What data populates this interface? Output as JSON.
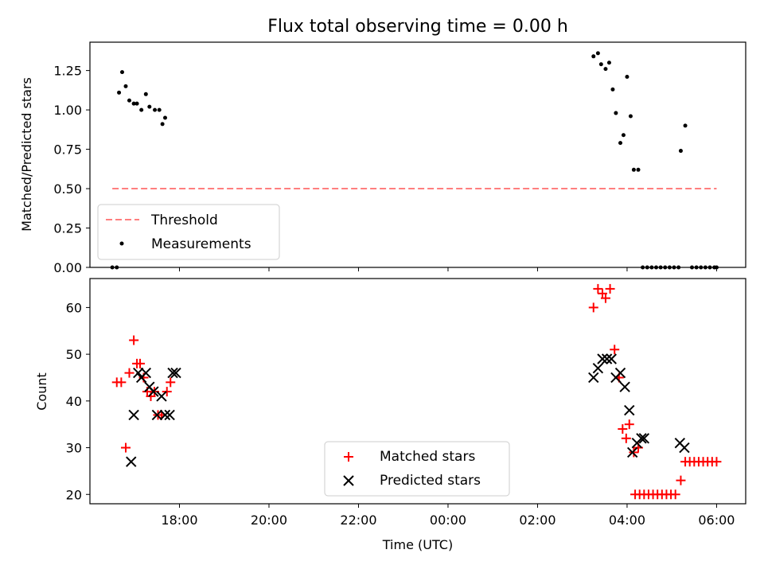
{
  "title": "Flux total observing time = 0.00 h",
  "colors": {
    "threshold": "#ff7f7f",
    "measurements": "#000000",
    "matched": "#ff0000",
    "predicted": "#000000"
  },
  "chart_data": [
    {
      "type": "scatter",
      "name": "ratio-panel",
      "ylabel": "Matched/Predicted stars",
      "xlim_hours": [
        16.0,
        30.65
      ],
      "ylim": [
        0,
        1.43
      ],
      "yticks": [
        0.0,
        0.25,
        0.5,
        0.75,
        1.0,
        1.25
      ],
      "ytick_labels": [
        "0.00",
        "0.25",
        "0.50",
        "0.75",
        "1.00",
        "1.25"
      ],
      "legend": {
        "position": "lower-left",
        "items": [
          {
            "key": "threshold",
            "label": "Threshold",
            "style": "dashed-line"
          },
          {
            "key": "measurements",
            "label": "Measurements",
            "style": "dot"
          }
        ]
      },
      "threshold": {
        "value": 0.5,
        "x_range_hours": [
          16.5,
          30.0
        ]
      },
      "measurements": [
        [
          16.5,
          0.0
        ],
        [
          16.6,
          0.0
        ],
        [
          16.65,
          1.11
        ],
        [
          16.72,
          1.24
        ],
        [
          16.8,
          1.15
        ],
        [
          16.88,
          1.06
        ],
        [
          16.98,
          1.04
        ],
        [
          17.05,
          1.04
        ],
        [
          17.15,
          1.0
        ],
        [
          17.25,
          1.1
        ],
        [
          17.33,
          1.02
        ],
        [
          17.45,
          1.0
        ],
        [
          17.55,
          1.0
        ],
        [
          17.62,
          0.91
        ],
        [
          17.68,
          0.95
        ],
        [
          27.25,
          1.34
        ],
        [
          27.35,
          1.36
        ],
        [
          27.42,
          1.29
        ],
        [
          27.52,
          1.26
        ],
        [
          27.6,
          1.3
        ],
        [
          27.68,
          1.13
        ],
        [
          27.75,
          0.98
        ],
        [
          27.85,
          0.79
        ],
        [
          27.92,
          0.84
        ],
        [
          28.0,
          1.21
        ],
        [
          28.08,
          0.96
        ],
        [
          28.15,
          0.62
        ],
        [
          28.25,
          0.62
        ],
        [
          29.2,
          0.74
        ],
        [
          29.3,
          0.9
        ],
        [
          28.35,
          0.0
        ],
        [
          28.45,
          0.0
        ],
        [
          28.55,
          0.0
        ],
        [
          28.65,
          0.0
        ],
        [
          28.75,
          0.0
        ],
        [
          28.85,
          0.0
        ],
        [
          28.95,
          0.0
        ],
        [
          29.05,
          0.0
        ],
        [
          29.15,
          0.0
        ],
        [
          29.45,
          0.0
        ],
        [
          29.55,
          0.0
        ],
        [
          29.65,
          0.0
        ],
        [
          29.75,
          0.0
        ],
        [
          29.85,
          0.0
        ],
        [
          29.95,
          0.0
        ],
        [
          30.0,
          0.0
        ]
      ]
    },
    {
      "type": "scatter",
      "name": "count-panel",
      "ylabel": "Count",
      "xlabel": "Time (UTC)",
      "xlim_hours": [
        16.0,
        30.65
      ],
      "ylim": [
        18,
        66.2
      ],
      "yticks": [
        20,
        30,
        40,
        50,
        60
      ],
      "ytick_labels": [
        "20",
        "30",
        "40",
        "50",
        "60"
      ],
      "xticks_hours": [
        18,
        20,
        22,
        24,
        26,
        28,
        30
      ],
      "xtick_labels": [
        "18:00",
        "20:00",
        "22:00",
        "00:00",
        "02:00",
        "04:00",
        "06:00"
      ],
      "legend": {
        "position": "lower-center",
        "items": [
          {
            "key": "matched",
            "label": "Matched stars",
            "style": "plus"
          },
          {
            "key": "predicted",
            "label": "Predicted stars",
            "style": "x"
          }
        ]
      },
      "series": [
        {
          "name": "Matched stars",
          "marker": "plus",
          "points": [
            [
              16.6,
              44
            ],
            [
              16.7,
              44
            ],
            [
              16.8,
              30
            ],
            [
              16.88,
              46
            ],
            [
              16.98,
              53
            ],
            [
              17.05,
              48
            ],
            [
              17.12,
              48
            ],
            [
              17.2,
              45
            ],
            [
              17.28,
              42
            ],
            [
              17.36,
              41
            ],
            [
              17.44,
              42
            ],
            [
              17.52,
              37
            ],
            [
              17.6,
              37
            ],
            [
              17.72,
              42
            ],
            [
              17.8,
              44
            ],
            [
              27.25,
              60
            ],
            [
              27.35,
              64
            ],
            [
              27.45,
              63
            ],
            [
              27.52,
              62
            ],
            [
              27.62,
              64
            ],
            [
              27.72,
              51
            ],
            [
              27.82,
              45
            ],
            [
              27.9,
              34
            ],
            [
              27.98,
              32
            ],
            [
              28.05,
              35
            ],
            [
              28.15,
              29
            ],
            [
              28.25,
              30
            ],
            [
              28.18,
              20
            ],
            [
              28.28,
              20
            ],
            [
              28.38,
              20
            ],
            [
              28.48,
              20
            ],
            [
              28.58,
              20
            ],
            [
              28.68,
              20
            ],
            [
              28.78,
              20
            ],
            [
              28.88,
              20
            ],
            [
              28.98,
              20
            ],
            [
              29.08,
              20
            ],
            [
              29.2,
              23
            ],
            [
              29.3,
              27
            ],
            [
              29.4,
              27
            ],
            [
              29.5,
              27
            ],
            [
              29.6,
              27
            ],
            [
              29.7,
              27
            ],
            [
              29.8,
              27
            ],
            [
              29.9,
              27
            ],
            [
              30.0,
              27
            ]
          ]
        },
        {
          "name": "Predicted stars",
          "marker": "x",
          "points": [
            [
              16.92,
              27
            ],
            [
              16.98,
              37
            ],
            [
              17.08,
              46
            ],
            [
              17.15,
              45
            ],
            [
              17.25,
              46
            ],
            [
              17.33,
              43
            ],
            [
              17.42,
              42
            ],
            [
              17.5,
              37
            ],
            [
              17.6,
              41
            ],
            [
              17.68,
              37
            ],
            [
              17.78,
              37
            ],
            [
              17.85,
              46
            ],
            [
              17.92,
              46
            ],
            [
              27.25,
              45
            ],
            [
              27.35,
              47
            ],
            [
              27.45,
              49
            ],
            [
              27.55,
              49
            ],
            [
              27.65,
              49
            ],
            [
              27.75,
              45
            ],
            [
              27.85,
              46
            ],
            [
              27.95,
              43
            ],
            [
              28.05,
              38
            ],
            [
              28.12,
              29
            ],
            [
              28.22,
              31
            ],
            [
              28.32,
              32
            ],
            [
              28.38,
              32
            ],
            [
              29.18,
              31
            ],
            [
              29.28,
              30
            ]
          ]
        }
      ]
    }
  ]
}
